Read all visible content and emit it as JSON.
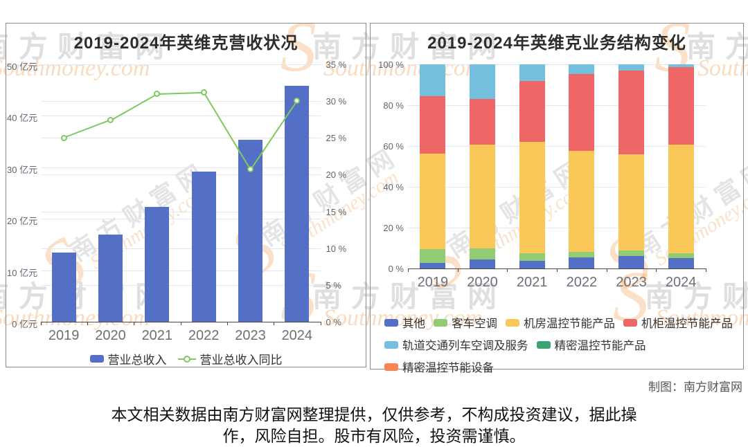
{
  "watermark": {
    "cn": "南方财富网",
    "en": "Southmoney.com",
    "s": "S"
  },
  "credit": "制图：南方财富网",
  "footer": {
    "lines": [
      "本文相关数据由南方财富网整理提供，仅供参考，不构成投资建议，据此操",
      "作，风险自担。股市有风险，投资需谨慎。"
    ]
  },
  "chart_data": [
    {
      "type": "bar",
      "title": "2019-2024年英维克营收状况",
      "categories": [
        "2019",
        "2020",
        "2021",
        "2022",
        "2023",
        "2024"
      ],
      "series": [
        {
          "name": "营业总收入",
          "type": "bar",
          "unit": "亿元",
          "color": "#5470c6",
          "values": [
            13.4,
            17.0,
            22.3,
            29.2,
            35.3,
            45.9
          ]
        },
        {
          "name": "营业总收入同比",
          "type": "line",
          "unit": "%",
          "color": "#7ec95f",
          "values": [
            25.0,
            27.4,
            31.0,
            31.2,
            20.7,
            30.1
          ]
        }
      ],
      "y_left": {
        "min": 0,
        "max": 50,
        "step": 10,
        "suffix": " 亿元"
      },
      "y_right": {
        "min": 0,
        "max": 35,
        "step": 5,
        "suffix": " %"
      },
      "grid": true,
      "legend_position": "bottom-center"
    },
    {
      "type": "bar",
      "subtype": "stacked-percent",
      "title": "2019-2024年英维克业务结构变化",
      "categories": [
        "2019",
        "2020",
        "2021",
        "2022",
        "2023",
        "2024"
      ],
      "series": [
        {
          "name": "其他",
          "color": "#5470c6",
          "values": [
            2.8,
            4.4,
            3.9,
            5.6,
            6.3,
            5.3
          ]
        },
        {
          "name": "客车空调",
          "color": "#91cc75",
          "values": [
            6.8,
            5.5,
            3.8,
            2.6,
            2.6,
            2.2
          ]
        },
        {
          "name": "机房温控节能产品",
          "color": "#fac858",
          "values": [
            46.8,
            50.8,
            54.3,
            49.3,
            46.9,
            53.3
          ]
        },
        {
          "name": "机柜温控节能产品",
          "color": "#ee6666",
          "values": [
            28.1,
            22.3,
            29.7,
            37.5,
            41.0,
            37.7
          ]
        },
        {
          "name": "轨道交通列车空调及服务",
          "color": "#73c0de",
          "values": [
            15.5,
            17.0,
            8.3,
            5.0,
            3.2,
            1.5
          ]
        },
        {
          "name": "精密温控节能产品",
          "color": "#3ba272",
          "values": [
            0,
            0,
            0,
            0,
            0,
            0
          ]
        },
        {
          "name": "精密温控节能设备",
          "color": "#fc8452",
          "values": [
            0,
            0,
            0,
            0,
            0,
            0
          ]
        }
      ],
      "y": {
        "min": 0,
        "max": 100,
        "step": 20,
        "suffix": " %"
      },
      "grid": true,
      "legend_position": "bottom-left"
    }
  ]
}
